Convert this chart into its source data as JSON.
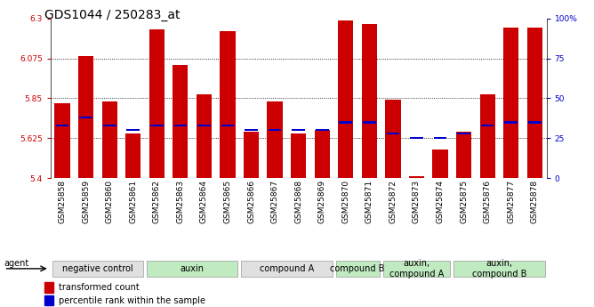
{
  "title": "GDS1044 / 250283_at",
  "samples": [
    "GSM25858",
    "GSM25859",
    "GSM25860",
    "GSM25861",
    "GSM25862",
    "GSM25863",
    "GSM25864",
    "GSM25865",
    "GSM25866",
    "GSM25867",
    "GSM25868",
    "GSM25869",
    "GSM25870",
    "GSM25871",
    "GSM25872",
    "GSM25873",
    "GSM25874",
    "GSM25875",
    "GSM25876",
    "GSM25877",
    "GSM25878"
  ],
  "transformed_counts": [
    5.82,
    6.09,
    5.83,
    5.65,
    6.24,
    6.04,
    5.87,
    6.23,
    5.66,
    5.83,
    5.65,
    5.67,
    6.29,
    6.27,
    5.84,
    5.41,
    5.56,
    5.66,
    5.87,
    6.25,
    6.25
  ],
  "percentile_ranks": [
    33,
    38,
    33,
    30,
    33,
    33,
    33,
    33,
    30,
    30,
    30,
    30,
    35,
    35,
    28,
    25,
    25,
    28,
    33,
    35,
    35
  ],
  "groups": [
    {
      "label": "negative control",
      "start": 0,
      "end": 3,
      "color": "#e0e0e0"
    },
    {
      "label": "auxin",
      "start": 4,
      "end": 7,
      "color": "#c0eac0"
    },
    {
      "label": "compound A",
      "start": 8,
      "end": 11,
      "color": "#e0e0e0"
    },
    {
      "label": "compound B",
      "start": 12,
      "end": 13,
      "color": "#c0eac0"
    },
    {
      "label": "auxin,\ncompound A",
      "start": 14,
      "end": 16,
      "color": "#c0eac0"
    },
    {
      "label": "auxin,\ncompound B",
      "start": 17,
      "end": 20,
      "color": "#c0eac0"
    }
  ],
  "ymin": 5.4,
  "ymax": 6.3,
  "yticks": [
    5.4,
    5.625,
    5.85,
    6.075,
    6.3
  ],
  "right_yticks": [
    0,
    25,
    50,
    75,
    100
  ],
  "bar_color": "#cc0000",
  "percentile_color": "#0000cc",
  "bar_width": 0.65,
  "title_fontsize": 10,
  "tick_fontsize": 6.5,
  "label_fontsize": 7,
  "group_fontsize": 7
}
